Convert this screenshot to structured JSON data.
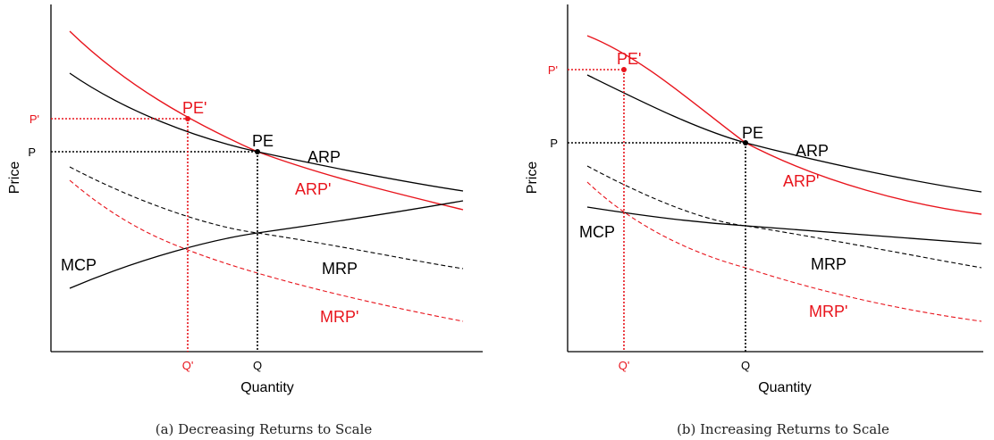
{
  "colors": {
    "black": "#000000",
    "red": "#e8141c"
  },
  "panels": [
    {
      "id": "a",
      "caption": "(a) Decreasing Returns to Scale",
      "xlabel": "Quantity",
      "ylabel": "Price",
      "ticks": {
        "q": "Q",
        "q_prime": "Q'",
        "p": "P",
        "p_prime": "P'"
      },
      "points": {
        "pe": "PE",
        "pe_prime": "PE'"
      },
      "curves": {
        "arp": "ARP",
        "arp_prime": "ARP'",
        "mcp": "MCP",
        "mrp": "MRP",
        "mrp_prime": "MRP'"
      }
    },
    {
      "id": "b",
      "caption": "(b) Increasing Returns to Scale",
      "xlabel": "Quantity",
      "ylabel": "Price",
      "ticks": {
        "q": "Q",
        "q_prime": "Q'",
        "p": "P",
        "p_prime": "P'"
      },
      "points": {
        "pe": "PE",
        "pe_prime": "PE'"
      },
      "curves": {
        "arp": "ARP",
        "arp_prime": "ARP'",
        "mcp": "MCP",
        "mrp": "MRP",
        "mrp_prime": "MRP'"
      }
    }
  ]
}
